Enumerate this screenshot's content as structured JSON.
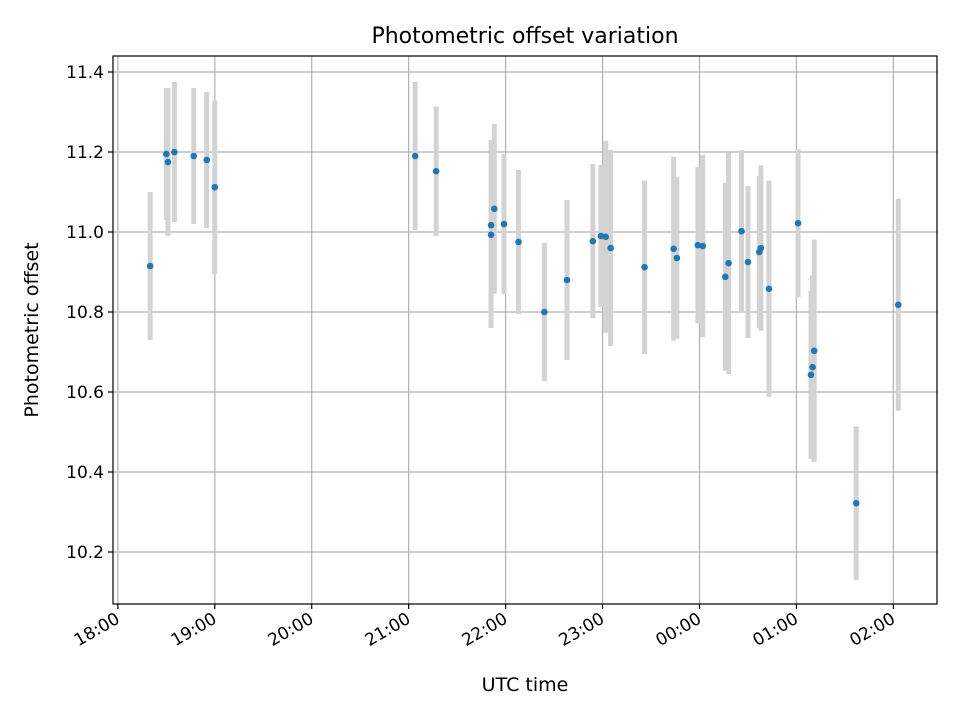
{
  "chart_data": {
    "type": "scatter",
    "title": "Photometric offset variation",
    "xlabel": "UTC time",
    "ylabel": "Photometric offset",
    "x_tick_labels": [
      "18:00",
      "19:00",
      "20:00",
      "21:00",
      "22:00",
      "23:00",
      "00:00",
      "01:00",
      "02:00"
    ],
    "y_tick_labels": [
      "10.2",
      "10.4",
      "10.6",
      "10.8",
      "11.0",
      "11.2",
      "11.4"
    ],
    "y_ticks": [
      10.2,
      10.4,
      10.6,
      10.8,
      11.0,
      11.2,
      11.4
    ],
    "xlim": [
      "2024-01-01T17:57:00",
      "2024-01-02T02:27:00"
    ],
    "ylim": [
      10.07,
      11.44
    ],
    "grid": true,
    "series": [
      {
        "points": [
          {
            "t": "2024-01-01T18:20",
            "y": 10.915,
            "err": 0.185
          },
          {
            "t": "2024-01-01T18:30",
            "y": 11.195,
            "err": 0.165
          },
          {
            "t": "2024-01-01T18:31",
            "y": 11.175,
            "err": 0.185
          },
          {
            "t": "2024-01-01T18:35",
            "y": 11.2,
            "err": 0.175
          },
          {
            "t": "2024-01-01T18:47",
            "y": 11.19,
            "err": 0.17
          },
          {
            "t": "2024-01-01T18:55",
            "y": 11.18,
            "err": 0.17
          },
          {
            "t": "2024-01-01T19:00",
            "y": 11.112,
            "err": 0.217
          },
          {
            "t": "2024-01-01T21:04",
            "y": 11.19,
            "err": 0.185
          },
          {
            "t": "2024-01-01T21:17",
            "y": 11.152,
            "err": 0.162
          },
          {
            "t": "2024-01-01T21:51",
            "y": 11.017,
            "err": 0.213
          },
          {
            "t": "2024-01-01T21:51",
            "y": 10.993,
            "err": 0.233
          },
          {
            "t": "2024-01-01T21:53",
            "y": 11.058,
            "err": 0.212
          },
          {
            "t": "2024-01-01T21:59",
            "y": 11.02,
            "err": 0.175
          },
          {
            "t": "2024-01-01T22:08",
            "y": 10.975,
            "err": 0.18
          },
          {
            "t": "2024-01-01T22:24",
            "y": 10.8,
            "err": 0.173
          },
          {
            "t": "2024-01-01T22:38",
            "y": 10.88,
            "err": 0.2
          },
          {
            "t": "2024-01-01T22:54",
            "y": 10.977,
            "err": 0.193
          },
          {
            "t": "2024-01-01T22:59",
            "y": 10.99,
            "err": 0.178
          },
          {
            "t": "2024-01-01T23:02",
            "y": 10.988,
            "err": 0.24
          },
          {
            "t": "2024-01-01T23:05",
            "y": 10.96,
            "err": 0.245
          },
          {
            "t": "2024-01-01T23:26",
            "y": 10.912,
            "err": 0.217
          },
          {
            "t": "2024-01-01T23:44",
            "y": 10.958,
            "err": 0.23
          },
          {
            "t": "2024-01-01T23:46",
            "y": 10.935,
            "err": 0.202
          },
          {
            "t": "2024-01-01T23:59",
            "y": 10.967,
            "err": 0.195
          },
          {
            "t": "2024-01-02T00:02",
            "y": 10.965,
            "err": 0.228
          },
          {
            "t": "2024-01-02T00:16",
            "y": 10.888,
            "err": 0.235
          },
          {
            "t": "2024-01-02T00:18",
            "y": 10.922,
            "err": 0.277
          },
          {
            "t": "2024-01-02T00:26",
            "y": 11.002,
            "err": 0.203
          },
          {
            "t": "2024-01-02T00:30",
            "y": 10.925,
            "err": 0.19
          },
          {
            "t": "2024-01-02T00:37",
            "y": 10.95,
            "err": 0.19
          },
          {
            "t": "2024-01-02T00:38",
            "y": 10.96,
            "err": 0.207
          },
          {
            "t": "2024-01-02T00:43",
            "y": 10.858,
            "err": 0.27
          },
          {
            "t": "2024-01-02T01:01",
            "y": 11.022,
            "err": 0.185
          },
          {
            "t": "2024-01-02T01:09",
            "y": 10.643,
            "err": 0.21
          },
          {
            "t": "2024-01-02T01:10",
            "y": 10.662,
            "err": 0.23
          },
          {
            "t": "2024-01-02T01:11",
            "y": 10.703,
            "err": 0.278
          },
          {
            "t": "2024-01-02T01:37",
            "y": 10.322,
            "err": 0.192
          },
          {
            "t": "2024-01-02T02:03",
            "y": 10.818,
            "err": 0.265
          }
        ]
      }
    ],
    "colors": {
      "marker": "#1f77b4",
      "errorbar": "#d3d3d3",
      "grid": "#b0b0b0",
      "axes": "#000000"
    }
  }
}
